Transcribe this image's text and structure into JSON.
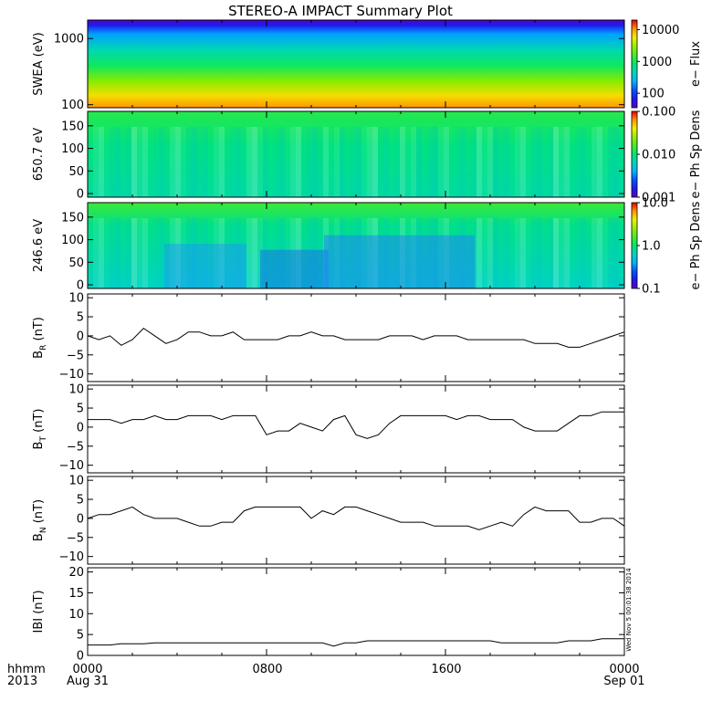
{
  "title": "STEREO-A IMPACT Summary Plot",
  "footer": {
    "row1_label": "hhmm",
    "row2_label": "2013",
    "ticks": [
      {
        "time": "0000",
        "date": "Aug 31"
      },
      {
        "time": "0800",
        "date": ""
      },
      {
        "time": "1600",
        "date": ""
      },
      {
        "time": "0000",
        "date": "Sep 01"
      }
    ]
  },
  "stamp": "Wed Nov 5 00:01:38 2014",
  "chart_data": [
    {
      "type": "heatmap",
      "ylabel": "SWEA (eV)",
      "yscale": "log",
      "ylim": [
        90,
        1900
      ],
      "yticks": [
        100,
        1000
      ],
      "yticklabels": [
        "100",
        "1000"
      ],
      "colorbar": {
        "label": "e− Flux",
        "scale": "log",
        "range": [
          35,
          20000
        ],
        "ticks": [
          100,
          1000,
          10000
        ],
        "ticklabels": [
          "100",
          "1000",
          "10000"
        ]
      }
    },
    {
      "type": "heatmap",
      "ylabel": "650.7 eV",
      "ylim": [
        -8,
        182
      ],
      "yticks": [
        0,
        50,
        100,
        150
      ],
      "yticklabels": [
        "0",
        "50",
        "100",
        "150"
      ],
      "colorbar": {
        "label": "e− Ph Sp Dens",
        "scale": "log",
        "range": [
          0.001,
          0.1
        ],
        "ticks": [
          0.001,
          0.01,
          0.1
        ],
        "ticklabels": [
          "0.001",
          "0.010",
          "0.100"
        ]
      }
    },
    {
      "type": "heatmap",
      "ylabel": "246.6 eV",
      "ylim": [
        -8,
        182
      ],
      "yticks": [
        0,
        50,
        100,
        150
      ],
      "yticklabels": [
        "0",
        "50",
        "100",
        "150"
      ],
      "colorbar": {
        "label": "e− Ph Sp Dens",
        "scale": "log",
        "range": [
          0.1,
          10
        ],
        "ticks": [
          0.1,
          1,
          10
        ],
        "ticklabels": [
          "0.1",
          "1.0",
          "10.0"
        ]
      }
    },
    {
      "type": "line",
      "ylabel_main": "B",
      "ylabel_sub": "R",
      "ylabel_unit": " (nT)",
      "ylim": [
        -12,
        11
      ],
      "yticks": [
        -10,
        -5,
        0,
        5,
        10
      ],
      "yticklabels": [
        "−10",
        "−5",
        "0",
        "5",
        "10"
      ],
      "x_hours": [
        0,
        0.5,
        1,
        1.5,
        2,
        2.5,
        3,
        3.5,
        4,
        4.5,
        5,
        5.5,
        6,
        6.5,
        7,
        7.5,
        8,
        8.5,
        9,
        9.5,
        10,
        10.5,
        11,
        11.5,
        12,
        12.5,
        13,
        13.5,
        14,
        14.5,
        15,
        15.5,
        16,
        16.5,
        17,
        17.5,
        18,
        18.5,
        19,
        19.5,
        20,
        20.5,
        21,
        21.5,
        22,
        22.5,
        23,
        23.5,
        24
      ],
      "values": [
        0,
        -1,
        0,
        -2.5,
        -1,
        2,
        0,
        -2,
        -1,
        1,
        1,
        0,
        0,
        1,
        -1,
        -1,
        -1,
        -1,
        0,
        0,
        1,
        0,
        0,
        -1,
        -1,
        -1,
        -1,
        0,
        0,
        0,
        -1,
        0,
        0,
        0,
        -1,
        -1,
        -1,
        -1,
        -1,
        -1,
        -2,
        -2,
        -2,
        -3,
        -3,
        -2,
        -1,
        0,
        1
      ]
    },
    {
      "type": "line",
      "ylabel_main": "B",
      "ylabel_sub": "T",
      "ylabel_unit": " (nT)",
      "ylim": [
        -12,
        11
      ],
      "yticks": [
        -10,
        -5,
        0,
        5,
        10
      ],
      "yticklabels": [
        "−10",
        "−5",
        "0",
        "5",
        "10"
      ],
      "x_hours": [
        0,
        0.5,
        1,
        1.5,
        2,
        2.5,
        3,
        3.5,
        4,
        4.5,
        5,
        5.5,
        6,
        6.5,
        7,
        7.5,
        8,
        8.5,
        9,
        9.5,
        10,
        10.5,
        11,
        11.5,
        12,
        12.5,
        13,
        13.5,
        14,
        14.5,
        15,
        15.5,
        16,
        16.5,
        17,
        17.5,
        18,
        18.5,
        19,
        19.5,
        20,
        20.5,
        21,
        21.5,
        22,
        22.5,
        23,
        23.5,
        24
      ],
      "values": [
        2,
        2,
        2,
        1,
        2,
        2,
        3,
        2,
        2,
        3,
        3,
        3,
        2,
        3,
        3,
        3,
        -2,
        -1,
        -1,
        1,
        0,
        -1,
        2,
        3,
        -2,
        -3,
        -2,
        1,
        3,
        3,
        3,
        3,
        3,
        2,
        3,
        3,
        2,
        2,
        2,
        0,
        -1,
        -1,
        -1,
        1,
        3,
        3,
        4,
        4,
        4
      ]
    },
    {
      "type": "line",
      "ylabel_main": "B",
      "ylabel_sub": "N",
      "ylabel_unit": " (nT)",
      "ylim": [
        -12,
        11
      ],
      "yticks": [
        -10,
        -5,
        0,
        5,
        10
      ],
      "yticklabels": [
        "−10",
        "−5",
        "0",
        "5",
        "10"
      ],
      "x_hours": [
        0,
        0.5,
        1,
        1.5,
        2,
        2.5,
        3,
        3.5,
        4,
        4.5,
        5,
        5.5,
        6,
        6.5,
        7,
        7.5,
        8,
        8.5,
        9,
        9.5,
        10,
        10.5,
        11,
        11.5,
        12,
        12.5,
        13,
        13.5,
        14,
        14.5,
        15,
        15.5,
        16,
        16.5,
        17,
        17.5,
        18,
        18.5,
        19,
        19.5,
        20,
        20.5,
        21,
        21.5,
        22,
        22.5,
        23,
        23.5,
        24
      ],
      "values": [
        0,
        1,
        1,
        2,
        3,
        1,
        0,
        0,
        0,
        -1,
        -2,
        -2,
        -1,
        -1,
        2,
        3,
        3,
        3,
        3,
        3,
        0,
        2,
        1,
        3,
        3,
        2,
        1,
        0,
        -1,
        -1,
        -1,
        -2,
        -2,
        -2,
        -2,
        -3,
        -2,
        -1,
        -2,
        1,
        3,
        2,
        2,
        2,
        -1,
        -1,
        0,
        0,
        -2
      ]
    },
    {
      "type": "line",
      "ylabel_main": "IBI (nT)",
      "ylim": [
        0,
        21
      ],
      "yticks": [
        0,
        5,
        10,
        15,
        20
      ],
      "yticklabels": [
        "0",
        "5",
        "10",
        "15",
        "20"
      ],
      "x_hours": [
        0,
        0.5,
        1,
        1.5,
        2,
        2.5,
        3,
        3.5,
        4,
        4.5,
        5,
        5.5,
        6,
        6.5,
        7,
        7.5,
        8,
        8.5,
        9,
        9.5,
        10,
        10.5,
        11,
        11.5,
        12,
        12.5,
        13,
        13.5,
        14,
        14.5,
        15,
        15.5,
        16,
        16.5,
        17,
        17.5,
        18,
        18.5,
        19,
        19.5,
        20,
        20.5,
        21,
        21.5,
        22,
        22.5,
        23,
        23.5,
        24
      ],
      "values": [
        2.5,
        2.5,
        2.5,
        2.8,
        2.8,
        2.8,
        3,
        3,
        3,
        3,
        3,
        3,
        3,
        3,
        3,
        3,
        3,
        3,
        3,
        3,
        3,
        3,
        2.2,
        3,
        3,
        3.5,
        3.5,
        3.5,
        3.5,
        3.5,
        3.5,
        3.5,
        3.5,
        3.5,
        3.5,
        3.5,
        3.5,
        3,
        3,
        3,
        3,
        3,
        3,
        3.5,
        3.5,
        3.5,
        4,
        4,
        4
      ]
    }
  ]
}
